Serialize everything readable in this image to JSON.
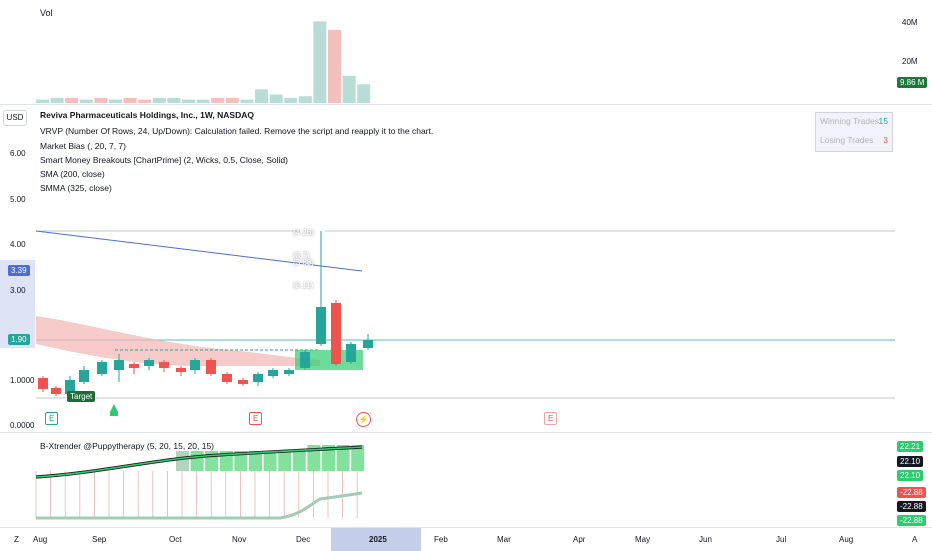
{
  "volume": {
    "title": "Vol",
    "axis_labels": [
      "40M",
      "20M"
    ],
    "last_value": "9.86 M",
    "bars": [
      2,
      3,
      3,
      2,
      3,
      2,
      3,
      2,
      3,
      3,
      2,
      2,
      3,
      3,
      2,
      8,
      5,
      3,
      4,
      48,
      43,
      16,
      11
    ],
    "bar_colors": [
      "up",
      "up",
      "down",
      "up",
      "down",
      "up",
      "down",
      "down",
      "up",
      "up",
      "up",
      "up",
      "down",
      "down",
      "up",
      "up",
      "up",
      "up",
      "up",
      "up",
      "down",
      "up",
      "up"
    ]
  },
  "main": {
    "currency_button": "USD",
    "legend": [
      "Reviva Pharmaceuticals Holdings, Inc., 1W, NASDAQ",
      "VRVP (Number Of Rows, 24, Up/Down): Calculation failed. Remove the script and reapply it to the chart.",
      "Market Bias (, 20, 7, 7)",
      "Smart Money Breakouts [ChartPrime] (2, Wicks, 0.5, Close, Solid)",
      "SMA (200, close)",
      "SMMA (325, close)"
    ],
    "price_axis": [
      "6.00",
      "5.00",
      "4.00",
      "3.00",
      "1.0000",
      "0.0000"
    ],
    "price_badges": {
      "sma": "3.39",
      "last": "1.90"
    },
    "level_labels": [
      "(4.26)",
      "(3.7)",
      "(3.63)",
      "(3.11)"
    ],
    "target_label": "Target",
    "event_markers": [
      "E",
      "E",
      "E"
    ],
    "winning_trades_label": "Winning Trades",
    "winning_trades_value": "15",
    "losing_trades_label": "Losing Trades",
    "losing_trades_value": "3",
    "colors": {
      "up": "#26a69a",
      "down": "#ef5350",
      "sma": "#4c6ed1"
    }
  },
  "indicator": {
    "title": "B-Xtrender @Puppytherapy (5, 20, 15, 20, 15)",
    "axis_badges": [
      "22.21",
      "22.10",
      "22.10",
      "-22.88",
      "-22.88",
      "-22.88"
    ]
  },
  "time_axis": {
    "labels": [
      "Aug",
      "Sep",
      "Oct",
      "Nov",
      "Dec",
      "2025",
      "Feb",
      "Mar",
      "Apr",
      "May",
      "Jun",
      "Jul",
      "Aug"
    ],
    "left_button": "Z",
    "right_button": "A"
  }
}
